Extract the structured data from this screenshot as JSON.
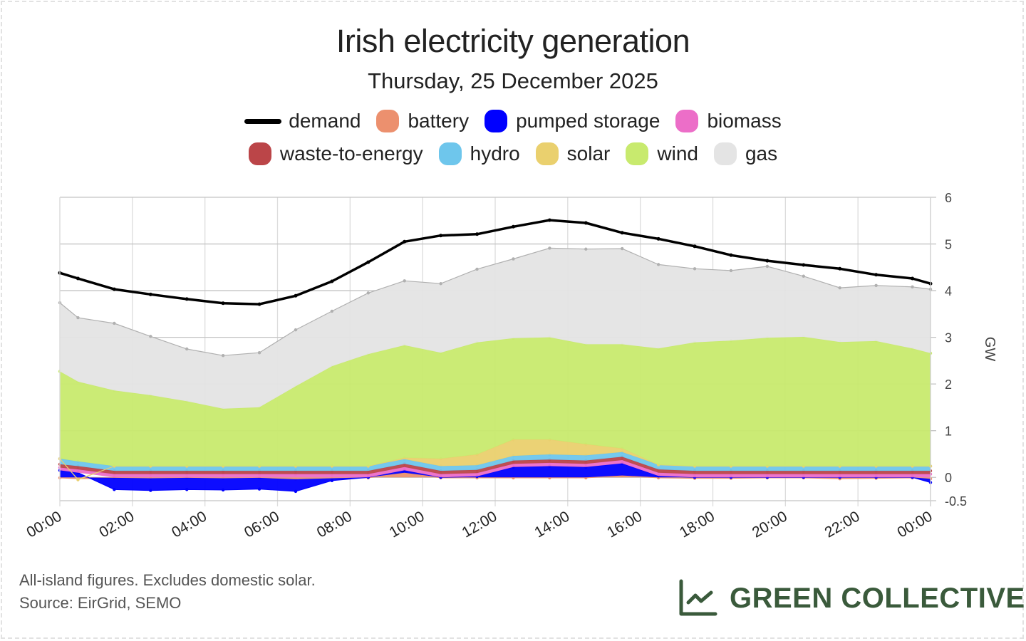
{
  "header": {
    "title": "Irish electricity generation",
    "subtitle": "Thursday, 25 December 2025"
  },
  "legend": {
    "row1": [
      {
        "key": "demand",
        "label": "demand",
        "color": "#000000",
        "kind": "line"
      },
      {
        "key": "battery",
        "label": "battery",
        "color": "#ec906e",
        "kind": "area"
      },
      {
        "key": "pumped_storage",
        "label": "pumped storage",
        "color": "#0000ff",
        "kind": "area"
      },
      {
        "key": "biomass",
        "label": "biomass",
        "color": "#ec6ec8",
        "kind": "area"
      }
    ],
    "row2": [
      {
        "key": "waste",
        "label": "waste-to-energy",
        "color": "#bb4548",
        "kind": "area"
      },
      {
        "key": "hydro",
        "label": "hydro",
        "color": "#6ec6ec",
        "kind": "area"
      },
      {
        "key": "solar",
        "label": "solar",
        "color": "#ead06e",
        "kind": "area"
      },
      {
        "key": "wind",
        "label": "wind",
        "color": "#c8ea6e",
        "kind": "area"
      },
      {
        "key": "gas",
        "label": "gas",
        "color": "#e4e4e4",
        "kind": "area"
      }
    ]
  },
  "chart_data": {
    "type": "area",
    "stacked": true,
    "title": "Irish electricity generation",
    "subtitle": "Thursday, 25 December 2025",
    "xlabel": "",
    "ylabel": "GW",
    "ylim": [
      -0.5,
      6
    ],
    "yticks": [
      -0.5,
      0,
      1,
      2,
      3,
      4,
      5,
      6
    ],
    "y_axis_position": "right",
    "xlim_hours": [
      0,
      24
    ],
    "xtick_labels": [
      "00:00",
      "02:00",
      "04:00",
      "06:00",
      "08:00",
      "10:00",
      "12:00",
      "14:00",
      "16:00",
      "18:00",
      "20:00",
      "22:00",
      "00:00"
    ],
    "grid": true,
    "legend_position": "top",
    "x_hours": [
      0,
      0.5,
      1.5,
      2.5,
      3.5,
      4.5,
      5.5,
      6.5,
      7.5,
      8.5,
      9.5,
      10.5,
      11.5,
      12.5,
      13.5,
      14.5,
      15.5,
      16.5,
      17.5,
      18.5,
      19.5,
      20.5,
      21.5,
      22.5,
      23.5,
      24
    ],
    "series": [
      {
        "name": "battery",
        "color": "#ec906e",
        "values": [
          -0.01,
          -0.03,
          -0.01,
          -0.02,
          -0.01,
          -0.02,
          -0.01,
          -0.04,
          -0.02,
          -0.01,
          0.1,
          -0.01,
          -0.01,
          -0.01,
          -0.01,
          -0.01,
          0.04,
          -0.01,
          -0.02,
          -0.02,
          -0.01,
          -0.01,
          -0.03,
          -0.02,
          -0.01,
          -0.03
        ]
      },
      {
        "name": "pumped storage",
        "color": "#0000ff",
        "values": [
          0.15,
          0.1,
          -0.25,
          -0.26,
          -0.25,
          -0.25,
          -0.24,
          -0.26,
          -0.05,
          0.0,
          0.05,
          0.0,
          0.02,
          0.22,
          0.24,
          0.22,
          0.26,
          0.03,
          0.0,
          0.0,
          0.0,
          0.0,
          0.0,
          0.0,
          0.0,
          -0.08
        ]
      },
      {
        "name": "biomass",
        "color": "#ec6ec8",
        "values": [
          0.06,
          0.07,
          0.07,
          0.07,
          0.07,
          0.07,
          0.07,
          0.07,
          0.07,
          0.07,
          0.07,
          0.07,
          0.07,
          0.07,
          0.07,
          0.07,
          0.07,
          0.07,
          0.07,
          0.07,
          0.07,
          0.07,
          0.07,
          0.07,
          0.07,
          0.07
        ]
      },
      {
        "name": "waste-to-energy",
        "color": "#bb4548",
        "values": [
          0.07,
          0.07,
          0.07,
          0.07,
          0.07,
          0.07,
          0.07,
          0.07,
          0.07,
          0.07,
          0.07,
          0.07,
          0.07,
          0.07,
          0.07,
          0.07,
          0.07,
          0.07,
          0.07,
          0.07,
          0.07,
          0.07,
          0.07,
          0.07,
          0.07,
          0.07
        ]
      },
      {
        "name": "hydro",
        "color": "#6ec6ec",
        "values": [
          0.12,
          0.1,
          0.1,
          0.1,
          0.1,
          0.1,
          0.1,
          0.1,
          0.1,
          0.1,
          0.1,
          0.1,
          0.1,
          0.1,
          0.11,
          0.11,
          0.1,
          0.1,
          0.1,
          0.1,
          0.1,
          0.1,
          0.1,
          0.1,
          0.1,
          0.1
        ]
      },
      {
        "name": "solar",
        "color": "#ead06e",
        "values": [
          0.0,
          -0.02,
          0.0,
          0.0,
          0.0,
          0.0,
          0.0,
          0.0,
          0.0,
          0.0,
          0.03,
          0.16,
          0.23,
          0.35,
          0.32,
          0.24,
          0.08,
          0.0,
          0.0,
          0.0,
          0.0,
          0.0,
          0.0,
          0.0,
          0.0,
          0.0
        ]
      },
      {
        "name": "wind",
        "color": "#c8ea6e",
        "values": [
          1.87,
          1.71,
          1.62,
          1.52,
          1.39,
          1.23,
          1.26,
          1.71,
          2.14,
          2.4,
          2.41,
          2.27,
          2.4,
          2.17,
          2.19,
          2.14,
          2.23,
          2.49,
          2.65,
          2.69,
          2.75,
          2.77,
          2.66,
          2.68,
          2.52,
          2.42
        ]
      },
      {
        "name": "gas",
        "color": "#e4e4e4",
        "values": [
          1.47,
          1.37,
          1.44,
          1.26,
          1.12,
          1.14,
          1.17,
          1.21,
          1.18,
          1.31,
          1.38,
          1.48,
          1.57,
          1.7,
          1.91,
          2.04,
          2.05,
          1.8,
          1.58,
          1.5,
          1.53,
          1.3,
          1.16,
          1.19,
          1.32,
          1.37
        ]
      }
    ],
    "demand": {
      "name": "demand",
      "color": "#000000",
      "values": [
        4.38,
        4.26,
        4.03,
        3.92,
        3.82,
        3.73,
        3.71,
        3.89,
        4.2,
        4.61,
        5.05,
        5.18,
        5.21,
        5.37,
        5.51,
        5.45,
        5.24,
        5.11,
        4.95,
        4.76,
        4.64,
        4.55,
        4.47,
        4.34,
        4.26,
        4.15
      ]
    }
  },
  "footer": {
    "note": "All-island figures. Excludes domestic solar.",
    "source": "Source: EirGrid, SEMO"
  },
  "brand": {
    "name": "GREEN COLLECTIVE",
    "color": "#3a5a3b"
  }
}
